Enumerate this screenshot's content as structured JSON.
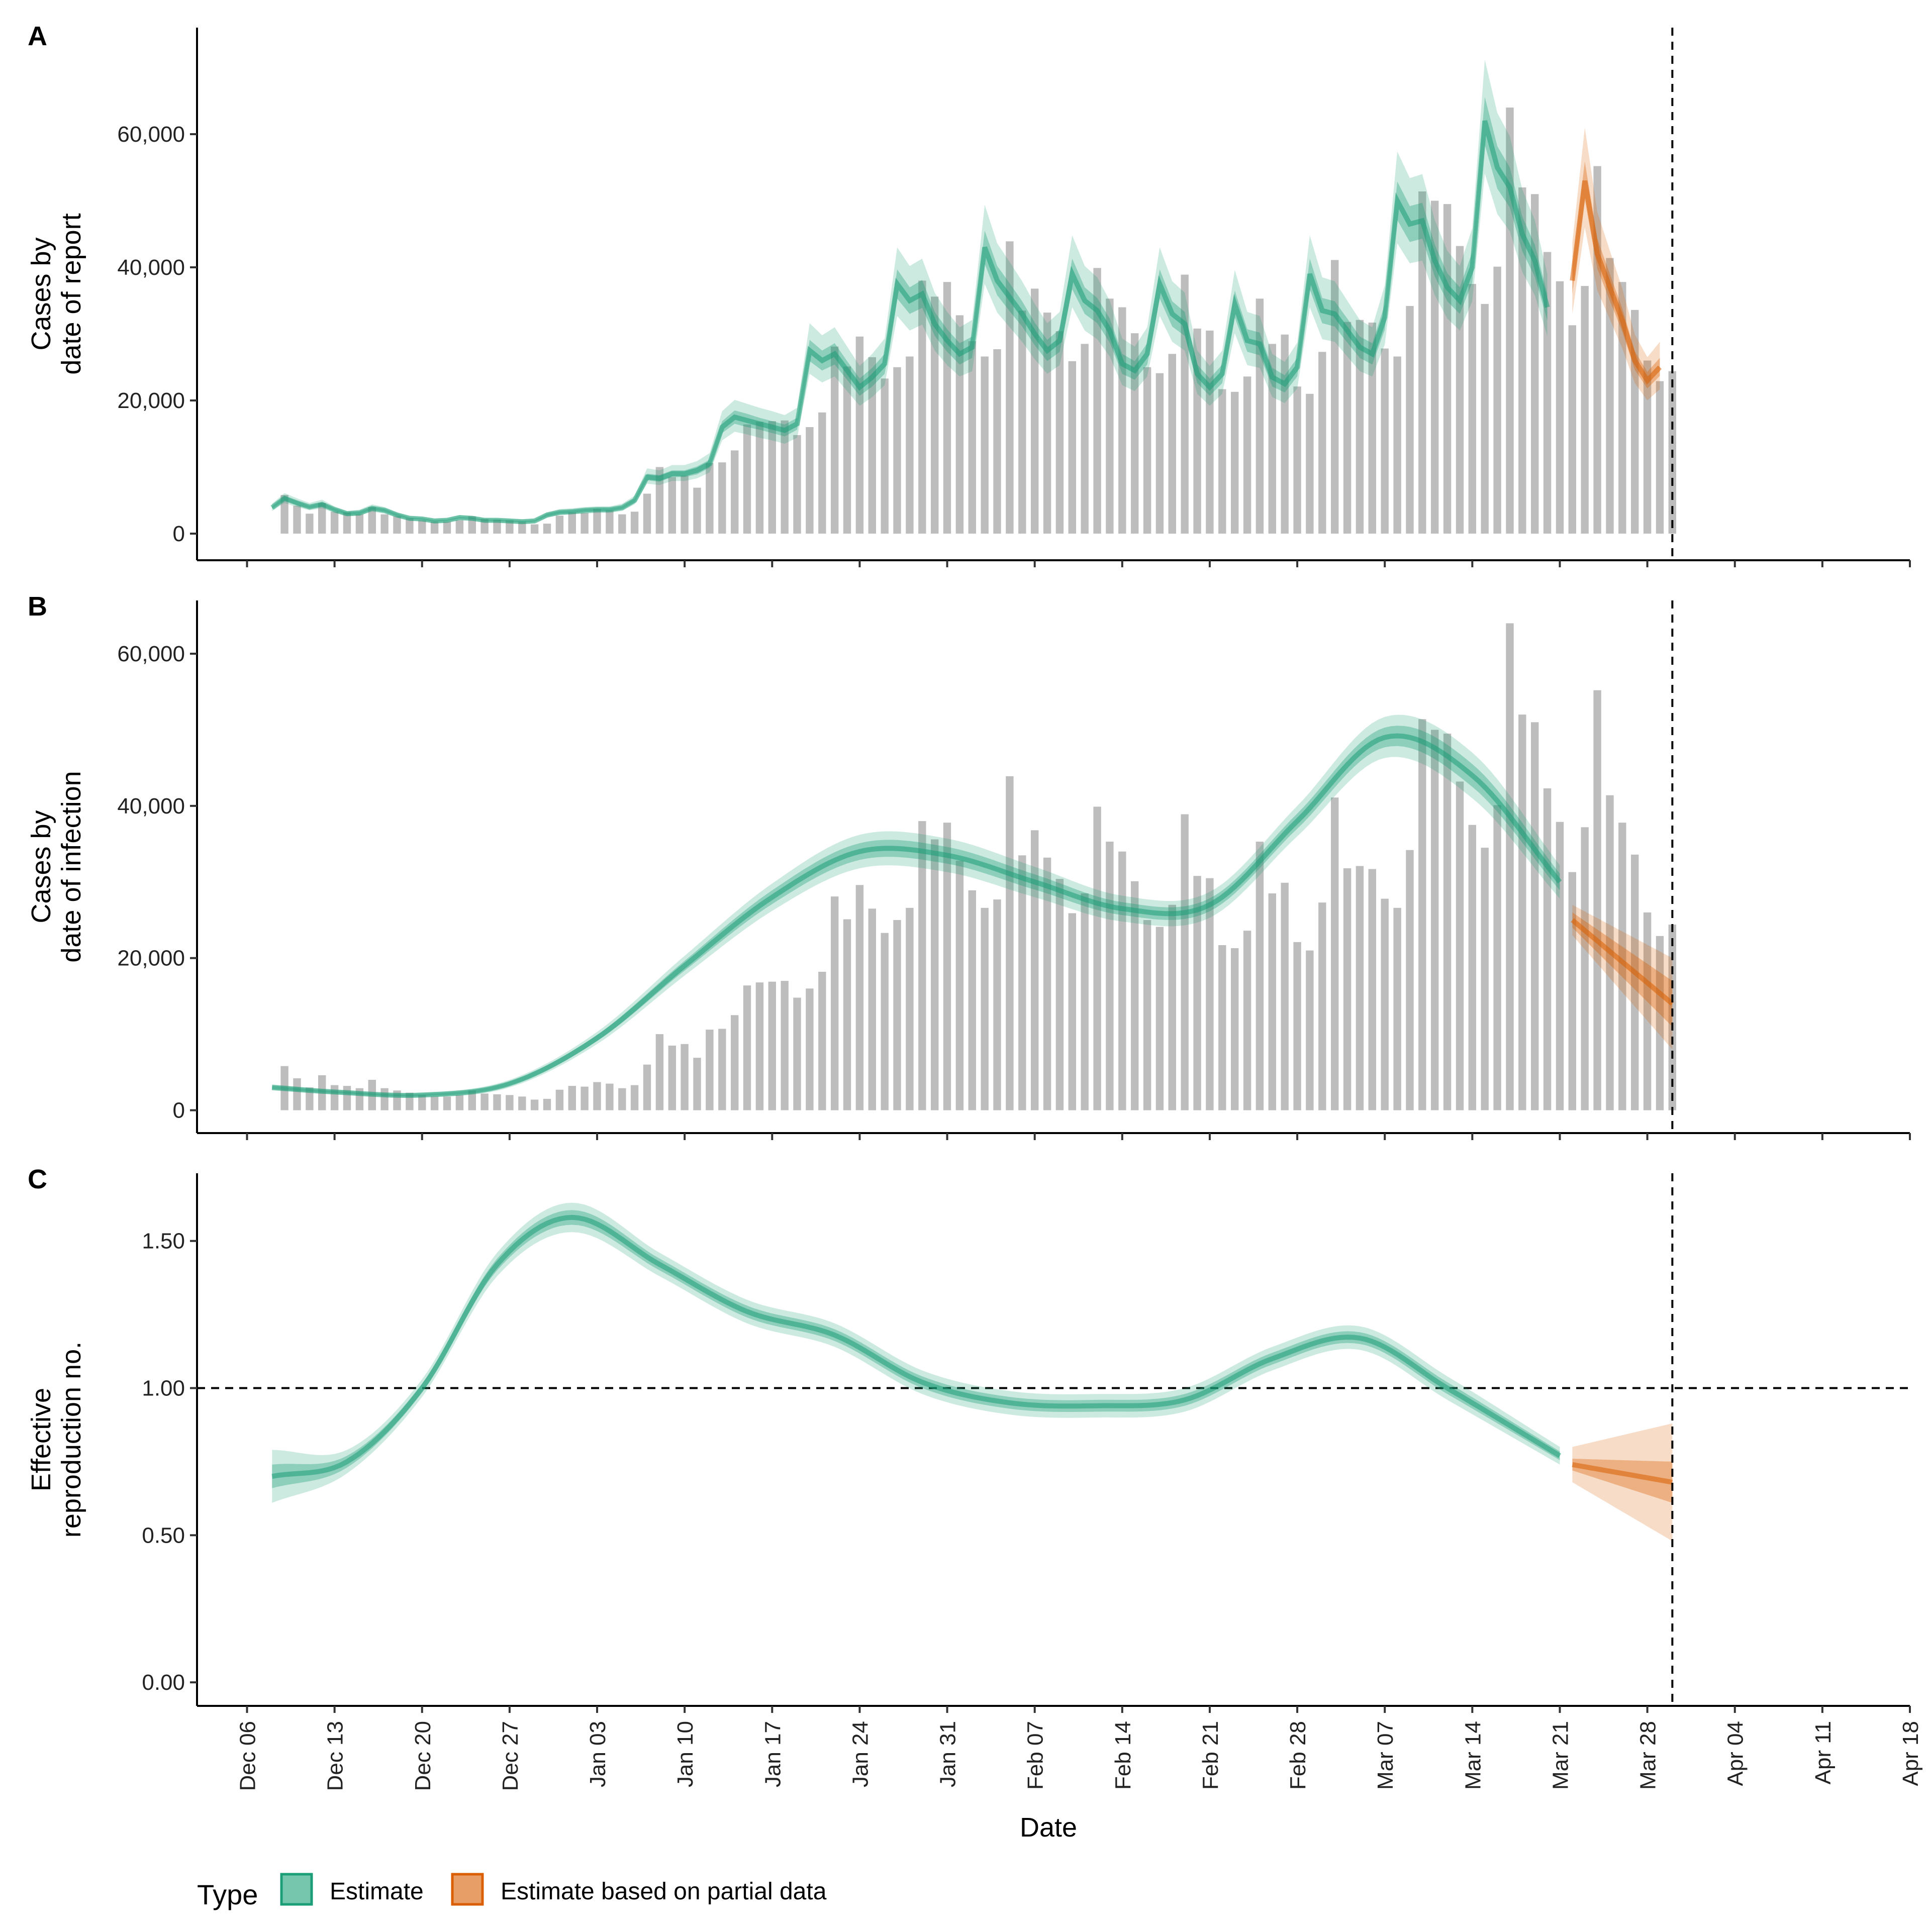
{
  "colors": {
    "estimate": "#1b9e77",
    "partial": "#d95f02",
    "bars": "#bdbdbd",
    "axis": "#000000"
  },
  "chart_data": [
    {
      "type": "bar+line",
      "tag": "A",
      "ylabel": [
        "Cases by",
        "date of report"
      ],
      "ylim": [
        -4000,
        76000
      ],
      "yticks": [
        0,
        20000,
        40000,
        60000
      ],
      "ytick_labels": [
        "0",
        "20,000",
        "40,000",
        "60,000"
      ],
      "bars": {
        "start_date": "2020-12-09",
        "values": [
          5800,
          4200,
          3000,
          4600,
          3300,
          3200,
          2900,
          4000,
          2900,
          2600,
          2300,
          2000,
          1800,
          1800,
          2000,
          2600,
          2200,
          2100,
          2000,
          1800,
          1400,
          1500,
          2700,
          3200,
          3100,
          3700,
          3500,
          2900,
          3300,
          6000,
          10000,
          8500,
          8700,
          6900,
          10600,
          10700,
          12500,
          16400,
          16800,
          16900,
          17000,
          14800,
          16000,
          18200,
          28100,
          25100,
          29600,
          26500,
          23300,
          25000,
          26600,
          38000,
          35600,
          37800,
          32800,
          28900,
          26600,
          27700,
          43900,
          33500,
          36800,
          33200,
          30400,
          25900,
          28500,
          39900,
          35300,
          34000,
          30100,
          25000,
          24100,
          27000,
          38900,
          30800,
          30500,
          21700,
          21300,
          23600,
          35300,
          28500,
          29900,
          22100,
          21000,
          27300,
          41100,
          31800,
          32100,
          31700,
          27800,
          26600,
          34200,
          51400,
          50000,
          49500,
          43200,
          37500,
          34500,
          40100,
          64000,
          52000,
          51000,
          42300,
          37900,
          31300,
          37200,
          55200,
          41400,
          37800,
          33600,
          26000,
          22900,
          24400
        ]
      },
      "estimate": {
        "start_date": "2020-12-08",
        "median": [
          3900,
          5300,
          4600,
          4000,
          4400,
          3600,
          3000,
          3100,
          3800,
          3500,
          2800,
          2300,
          2200,
          1900,
          2000,
          2400,
          2300,
          2000,
          2000,
          1900,
          1800,
          1900,
          2800,
          3200,
          3300,
          3500,
          3600,
          3600,
          3900,
          5000,
          8500,
          8300,
          9000,
          9000,
          9500,
          10500,
          16000,
          17500,
          17000,
          16500,
          16000,
          15500,
          16500,
          27500,
          26000,
          27000,
          24500,
          22000,
          23500,
          25500,
          37500,
          35000,
          36000,
          31500,
          29000,
          27000,
          28000,
          43000,
          38000,
          35500,
          33000,
          30000,
          27500,
          29000,
          39000,
          35000,
          33500,
          30500,
          25500,
          24500,
          27000,
          37500,
          33000,
          31500,
          24000,
          22000,
          24000,
          34500,
          29000,
          28500,
          23500,
          22500,
          25000,
          39000,
          33500,
          33000,
          30500,
          28000,
          27000,
          32500,
          50000,
          46500,
          47000,
          41000,
          37000,
          35000,
          40000,
          62000,
          55000,
          52000,
          45000,
          41000,
          34000
        ],
        "lower90": [
          3400,
          4600,
          4000,
          3500,
          3800,
          3100,
          2600,
          2700,
          3300,
          3000,
          2400,
          2000,
          1900,
          1600,
          1700,
          2100,
          2000,
          1700,
          1700,
          1600,
          1500,
          1600,
          2400,
          2800,
          2900,
          3000,
          3100,
          3100,
          3400,
          4400,
          7500,
          7300,
          7900,
          7900,
          8300,
          9200,
          14000,
          15300,
          14900,
          14400,
          14000,
          13500,
          14400,
          24000,
          22700,
          23600,
          21400,
          19200,
          20500,
          22300,
          32700,
          30500,
          31400,
          27500,
          25300,
          23600,
          24400,
          37500,
          33200,
          31000,
          28800,
          26200,
          24000,
          25300,
          34000,
          30500,
          29200,
          26600,
          22300,
          21400,
          23600,
          32700,
          28800,
          27500,
          21000,
          19200,
          21000,
          30100,
          25300,
          24900,
          20500,
          19600,
          21800,
          34000,
          29200,
          28800,
          26600,
          24400,
          23600,
          28400,
          43600,
          40600,
          41000,
          35800,
          32300,
          30500,
          34900,
          54100,
          48000,
          45400,
          39300,
          35800,
          29700
        ],
        "upper90": [
          4500,
          6100,
          5300,
          4600,
          5100,
          4100,
          3400,
          3600,
          4400,
          4000,
          3200,
          2600,
          2500,
          2200,
          2300,
          2800,
          2600,
          2300,
          2300,
          2200,
          2100,
          2200,
          3200,
          3700,
          3800,
          4000,
          4100,
          4100,
          4500,
          5700,
          9800,
          9500,
          10300,
          10300,
          10900,
          12100,
          18400,
          20100,
          19500,
          18900,
          18400,
          17800,
          18900,
          31600,
          29800,
          31000,
          28100,
          25200,
          27000,
          29300,
          43000,
          40200,
          41300,
          36200,
          33300,
          31000,
          32100,
          49400,
          43600,
          40800,
          37900,
          34500,
          31600,
          33300,
          44800,
          40200,
          38500,
          35000,
          29300,
          28100,
          31000,
          43000,
          37900,
          36200,
          27500,
          25200,
          27500,
          39600,
          33300,
          32700,
          27000,
          25800,
          28700,
          44800,
          38500,
          37900,
          35000,
          32100,
          31000,
          37300,
          57400,
          53400,
          54000,
          47100,
          42500,
          40200,
          45900,
          71200,
          63200,
          59700,
          51700,
          47100,
          39000
        ],
        "lower50": [
          3700,
          5000,
          4300,
          3800,
          4100,
          3400,
          2800,
          2900,
          3600,
          3300,
          2600,
          2200,
          2100,
          1800,
          1900,
          2300,
          2200,
          1900,
          1900,
          1800,
          1700,
          1800,
          2600,
          3000,
          3100,
          3300,
          3400,
          3400,
          3700,
          4700,
          8000,
          7800,
          8500,
          8500,
          8900,
          9900,
          15100,
          16500,
          16000,
          15600,
          15100,
          14600,
          15600,
          25900,
          24500,
          25400,
          23100,
          20700,
          22100,
          24000,
          35300,
          33000,
          33900,
          29700,
          27300,
          25400,
          26400,
          40500,
          35800,
          33400,
          31100,
          28300,
          25900,
          27300,
          36700,
          33000,
          31600,
          28700,
          24000,
          23100,
          25400,
          35300,
          31100,
          29700,
          22600,
          20700,
          22600,
          32500,
          27300,
          26800,
          22100,
          21200,
          23600,
          36700,
          31600,
          31100,
          28700,
          26400,
          25400,
          30600,
          47100,
          43800,
          44300,
          38600,
          34900,
          33000,
          37700,
          58400,
          51800,
          49000,
          42400,
          38600,
          32000
        ],
        "upper50": [
          4100,
          5600,
          4900,
          4200,
          4700,
          3800,
          3200,
          3300,
          4000,
          3700,
          3000,
          2400,
          2300,
          2000,
          2100,
          2500,
          2400,
          2100,
          2100,
          2000,
          1900,
          2000,
          3000,
          3400,
          3500,
          3700,
          3800,
          3800,
          4100,
          5300,
          9000,
          8800,
          9500,
          9500,
          10100,
          11100,
          16900,
          18500,
          18000,
          17400,
          16900,
          16400,
          17400,
          29100,
          27500,
          28600,
          25900,
          23300,
          24900,
          27000,
          39700,
          37000,
          38100,
          33300,
          30700,
          28600,
          29600,
          45500,
          40200,
          37600,
          34900,
          31700,
          29100,
          30700,
          41300,
          37000,
          35400,
          32300,
          27000,
          25900,
          28600,
          39700,
          34900,
          33300,
          25400,
          23300,
          25400,
          36500,
          30700,
          30200,
          24900,
          23800,
          26400,
          41300,
          35400,
          34900,
          32300,
          29600,
          28600,
          34400,
          52900,
          49200,
          49700,
          43400,
          39100,
          37000,
          42300,
          65600,
          58200,
          55000,
          47600,
          43400,
          36000
        ]
      },
      "partial": {
        "start_date": "2021-03-22",
        "median": [
          38000,
          53000,
          42000,
          37000,
          32000,
          26000,
          23000,
          25000
        ],
        "lower90": [
          33000,
          46000,
          36500,
          32200,
          27800,
          22600,
          20000,
          21700
        ],
        "upper90": [
          43700,
          61000,
          48300,
          42500,
          36800,
          29900,
          26500,
          28800
        ],
        "lower50": [
          36000,
          50200,
          39800,
          35000,
          30300,
          24600,
          21800,
          23700
        ],
        "upper50": [
          40100,
          55900,
          44300,
          39000,
          33800,
          27400,
          24300,
          26400
        ]
      }
    },
    {
      "type": "bar+line",
      "tag": "B",
      "ylabel": [
        "Cases by",
        "date of infection"
      ],
      "ylim": [
        -3000,
        67000
      ],
      "yticks": [
        0,
        20000,
        40000,
        60000
      ],
      "ytick_labels": [
        "0",
        "20,000",
        "40,000",
        "60,000"
      ],
      "bars": {
        "start_date": "2020-12-09",
        "values": [
          5800,
          4200,
          3000,
          4600,
          3300,
          3200,
          2900,
          4000,
          2900,
          2600,
          2300,
          2000,
          1800,
          1800,
          2000,
          2600,
          2200,
          2100,
          2000,
          1800,
          1400,
          1500,
          2700,
          3200,
          3100,
          3700,
          3500,
          2900,
          3300,
          6000,
          10000,
          8500,
          8700,
          6900,
          10600,
          10700,
          12500,
          16400,
          16800,
          16900,
          17000,
          14800,
          16000,
          18200,
          28100,
          25100,
          29600,
          26500,
          23300,
          25000,
          26600,
          38000,
          35600,
          37800,
          32800,
          28900,
          26600,
          27700,
          43900,
          33500,
          36800,
          33200,
          30400,
          25900,
          28500,
          39900,
          35300,
          34000,
          30100,
          25000,
          24100,
          27000,
          38900,
          30800,
          30500,
          21700,
          21300,
          23600,
          35300,
          28500,
          29900,
          22100,
          21000,
          27300,
          41100,
          31800,
          32100,
          31700,
          27800,
          26600,
          34200,
          51400,
          50000,
          49500,
          43200,
          37500,
          34500,
          40100,
          64000,
          52000,
          51000,
          42300,
          37900,
          31300,
          37200,
          55200,
          41400,
          37800,
          33600,
          26000,
          22900,
          24400
        ]
      },
      "estimate_knots": {
        "dates": [
          "2020-12-08",
          "2020-12-13",
          "2020-12-20",
          "2020-12-27",
          "2021-01-03",
          "2021-01-10",
          "2021-01-17",
          "2021-01-24",
          "2021-01-31",
          "2021-02-07",
          "2021-02-14",
          "2021-02-21",
          "2021-02-28",
          "2021-03-07",
          "2021-03-14",
          "2021-03-21"
        ],
        "median": [
          3000,
          2400,
          2000,
          3500,
          9500,
          19000,
          28000,
          34000,
          33500,
          30000,
          26500,
          27000,
          38000,
          49000,
          44000,
          30000
        ],
        "halfwidth90": [
          400,
          300,
          300,
          500,
          800,
          1300,
          1800,
          2200,
          2200,
          2000,
          1700,
          1700,
          2000,
          2700,
          3000,
          2200
        ],
        "halfwidth50": [
          200,
          150,
          150,
          250,
          400,
          650,
          900,
          1100,
          1100,
          1000,
          850,
          850,
          1000,
          1300,
          1500,
          1100
        ]
      },
      "partial_knots": {
        "dates": [
          "2021-03-22",
          "2021-03-30"
        ],
        "median": [
          25000,
          14000
        ],
        "halfwidth90": [
          2000,
          6000
        ],
        "halfwidth50": [
          1000,
          3000
        ]
      }
    },
    {
      "type": "line",
      "tag": "C",
      "ylabel": [
        "Effective",
        "reproduction no."
      ],
      "ylim": [
        -0.08,
        1.73
      ],
      "yticks": [
        0,
        0.5,
        1.0,
        1.5
      ],
      "ytick_labels": [
        "0.00",
        "0.50",
        "1.00",
        "1.50"
      ],
      "reference_line": 1.0,
      "estimate_knots": {
        "dates": [
          "2020-12-08",
          "2020-12-14",
          "2020-12-20",
          "2020-12-26",
          "2021-01-01",
          "2021-01-08",
          "2021-01-15",
          "2021-01-22",
          "2021-01-29",
          "2021-02-05",
          "2021-02-12",
          "2021-02-19",
          "2021-02-26",
          "2021-03-05",
          "2021-03-12",
          "2021-03-21"
        ],
        "median": [
          0.7,
          0.75,
          1.0,
          1.42,
          1.58,
          1.42,
          1.26,
          1.18,
          1.02,
          0.95,
          0.94,
          0.96,
          1.1,
          1.17,
          1.0,
          0.77
        ],
        "halfwidth90": [
          0.09,
          0.04,
          0.03,
          0.04,
          0.05,
          0.04,
          0.04,
          0.04,
          0.04,
          0.04,
          0.04,
          0.04,
          0.04,
          0.04,
          0.04,
          0.03
        ],
        "halfwidth50": [
          0.04,
          0.02,
          0.015,
          0.02,
          0.025,
          0.02,
          0.02,
          0.02,
          0.02,
          0.02,
          0.02,
          0.02,
          0.02,
          0.02,
          0.02,
          0.015
        ]
      },
      "partial_knots": {
        "dates": [
          "2021-03-22",
          "2021-03-30"
        ],
        "median": [
          0.74,
          0.68
        ],
        "halfwidth90": [
          0.06,
          0.2
        ],
        "halfwidth50": [
          0.02,
          0.07
        ]
      }
    }
  ],
  "x_axis": {
    "title": "Date",
    "range": [
      "2020-12-02",
      "2021-04-18"
    ],
    "ticks": [
      "2020-12-06",
      "2020-12-13",
      "2020-12-20",
      "2020-12-27",
      "2021-01-03",
      "2021-01-10",
      "2021-01-17",
      "2021-01-24",
      "2021-01-31",
      "2021-02-07",
      "2021-02-14",
      "2021-02-21",
      "2021-02-28",
      "2021-03-07",
      "2021-03-14",
      "2021-03-21",
      "2021-03-28",
      "2021-04-04",
      "2021-04-11",
      "2021-04-18"
    ],
    "tick_labels": [
      "Dec 06",
      "Dec 13",
      "Dec 20",
      "Dec 27",
      "Jan 03",
      "Jan 10",
      "Jan 17",
      "Jan 24",
      "Jan 31",
      "Feb 07",
      "Feb 14",
      "Feb 21",
      "Feb 28",
      "Mar 07",
      "Mar 14",
      "Mar 21",
      "Mar 28",
      "Apr 04",
      "Apr 11",
      "Apr 18"
    ]
  },
  "cutoff_date": "2021-03-30",
  "legend": {
    "title": "Type",
    "position": "bottom",
    "items": [
      {
        "label": "Estimate",
        "color": "#1b9e77"
      },
      {
        "label": "Estimate based on partial data",
        "color": "#d95f02"
      }
    ]
  }
}
